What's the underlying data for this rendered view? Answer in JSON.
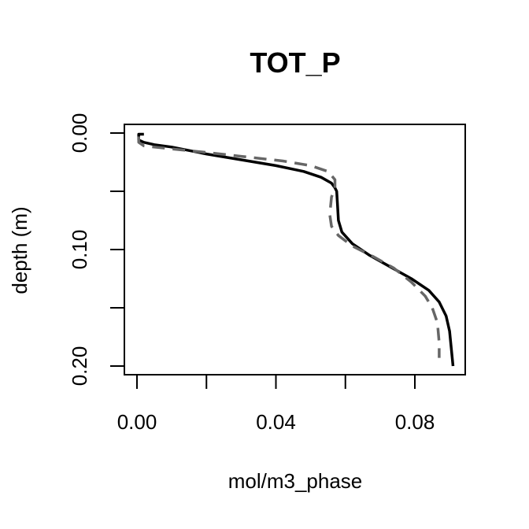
{
  "chart_data": {
    "type": "line",
    "title": "TOT_P",
    "xlabel": "mol/m3_phase",
    "ylabel": "depth (m)",
    "xlim": [
      0.0,
      0.09
    ],
    "ylim": [
      0.0,
      0.2
    ],
    "y_reversed": true,
    "grid": false,
    "x_ticks": [
      0.0,
      0.02,
      0.04,
      0.06,
      0.08
    ],
    "x_tick_labels": [
      "0.00",
      "",
      "0.04",
      "",
      "0.08"
    ],
    "y_ticks": [
      0.0,
      0.05,
      0.1,
      0.15,
      0.2
    ],
    "y_tick_labels": [
      "0.00",
      "",
      "0.10",
      "",
      "0.20"
    ],
    "series": [
      {
        "style": "solid",
        "color": "#000000",
        "points": [
          [
            0.002,
            0.001
          ],
          [
            0.0005,
            0.001
          ],
          [
            0.0005,
            0.006
          ],
          [
            0.002,
            0.008
          ],
          [
            0.005,
            0.01
          ],
          [
            0.01,
            0.012
          ],
          [
            0.02,
            0.018
          ],
          [
            0.03,
            0.023
          ],
          [
            0.04,
            0.028
          ],
          [
            0.048,
            0.033
          ],
          [
            0.053,
            0.038
          ],
          [
            0.056,
            0.043
          ],
          [
            0.057,
            0.047
          ],
          [
            0.0575,
            0.05
          ],
          [
            0.0577,
            0.06
          ],
          [
            0.058,
            0.075
          ],
          [
            0.059,
            0.085
          ],
          [
            0.062,
            0.095
          ],
          [
            0.067,
            0.105
          ],
          [
            0.073,
            0.115
          ],
          [
            0.079,
            0.125
          ],
          [
            0.084,
            0.135
          ],
          [
            0.087,
            0.145
          ],
          [
            0.089,
            0.157
          ],
          [
            0.09,
            0.17
          ],
          [
            0.0905,
            0.185
          ],
          [
            0.091,
            0.2
          ]
        ]
      },
      {
        "style": "dashed",
        "color": "#666666",
        "points": [
          [
            0.0005,
            0.003
          ],
          [
            0.0005,
            0.008
          ],
          [
            0.002,
            0.011
          ],
          [
            0.008,
            0.013
          ],
          [
            0.018,
            0.016
          ],
          [
            0.03,
            0.02
          ],
          [
            0.042,
            0.024
          ],
          [
            0.05,
            0.028
          ],
          [
            0.055,
            0.033
          ],
          [
            0.057,
            0.04
          ],
          [
            0.057,
            0.047
          ],
          [
            0.056,
            0.055
          ],
          [
            0.0555,
            0.07
          ],
          [
            0.056,
            0.08
          ],
          [
            0.058,
            0.088
          ],
          [
            0.062,
            0.097
          ],
          [
            0.068,
            0.106
          ],
          [
            0.074,
            0.116
          ],
          [
            0.079,
            0.128
          ],
          [
            0.083,
            0.14
          ],
          [
            0.085,
            0.15
          ],
          [
            0.0865,
            0.163
          ],
          [
            0.087,
            0.18
          ],
          [
            0.087,
            0.193
          ]
        ]
      }
    ]
  }
}
